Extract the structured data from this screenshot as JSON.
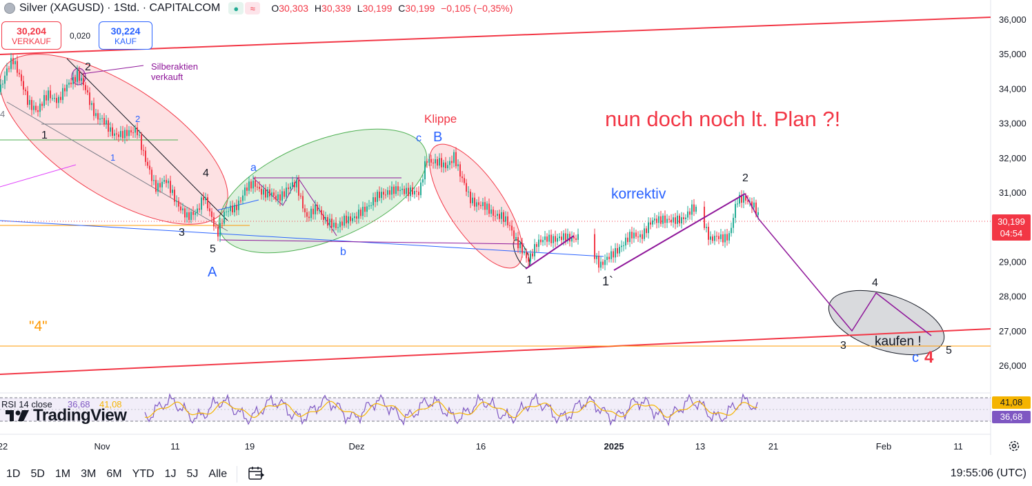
{
  "header": {
    "title": "Silver (XAGUSD) · 1Std. · CAPITALCOM",
    "open_label": "O",
    "open": "30,303",
    "high_label": "H",
    "high": "30,339",
    "low_label": "L",
    "low": "30,199",
    "close_label": "C",
    "close": "30,199",
    "change": "−0,105 (−0,35%)",
    "pill_green": "●",
    "pill_red": "≈"
  },
  "trade": {
    "sell_price": "30,204",
    "sell_label": "VERKAUF",
    "spread": "0,020",
    "buy_price": "30,224",
    "buy_label": "KAUF"
  },
  "colors": {
    "up": "#22ab94",
    "down": "#f23645",
    "channel": "#f23645",
    "orange": "#ff9800",
    "blue": "#2962ff",
    "purple": "#8e1599",
    "green_fill": "#4caf50",
    "rsi": "#7e57c2",
    "rsi_ma": "#f5b400"
  },
  "chart_data": {
    "type": "candlestick",
    "symbol": "Silver (XAGUSD)",
    "interval": "1Std.",
    "y_ticks": [
      "36,000",
      "35,000",
      "34,000",
      "33,000",
      "32,000",
      "31,000",
      "30,000",
      "29,000",
      "28,000",
      "27,000",
      "26,000"
    ],
    "y_values": [
      36,
      35,
      34,
      33,
      32,
      31,
      30,
      29,
      28,
      27,
      26
    ],
    "ylim": [
      25.2,
      36.4
    ],
    "x_ticks": [
      "22",
      "Nov",
      "11",
      "19",
      "Dez",
      "16",
      "2025",
      "13",
      "21",
      "Feb",
      "11"
    ],
    "last_price": "30,199",
    "countdown": "04:54",
    "close_path": [
      [
        0,
        33.9
      ],
      [
        10,
        34.6
      ],
      [
        18,
        34.9
      ],
      [
        28,
        34.3
      ],
      [
        40,
        33.7
      ],
      [
        55,
        33.3
      ],
      [
        70,
        33.9
      ],
      [
        85,
        33.6
      ],
      [
        100,
        34.2
      ],
      [
        112,
        34.4
      ],
      [
        125,
        33.9
      ],
      [
        140,
        33.2
      ],
      [
        160,
        32.8
      ],
      [
        180,
        32.6
      ],
      [
        198,
        32.9
      ],
      [
        210,
        31.9
      ],
      [
        225,
        31.2
      ],
      [
        240,
        31.3
      ],
      [
        258,
        30.7
      ],
      [
        272,
        30.2
      ],
      [
        285,
        30.5
      ],
      [
        295,
        30.9
      ],
      [
        305,
        30.3
      ],
      [
        315,
        29.85
      ],
      [
        325,
        30.4
      ],
      [
        340,
        30.5
      ],
      [
        355,
        31.1
      ],
      [
        370,
        31.2
      ],
      [
        385,
        31.0
      ],
      [
        400,
        30.8
      ],
      [
        415,
        31.1
      ],
      [
        430,
        31.2
      ],
      [
        445,
        30.3
      ],
      [
        460,
        30.5
      ],
      [
        475,
        30.2
      ],
      [
        488,
        29.9
      ],
      [
        500,
        30.3
      ],
      [
        515,
        30.2
      ],
      [
        530,
        30.6
      ],
      [
        545,
        30.8
      ],
      [
        565,
        31.1
      ],
      [
        580,
        31.0
      ],
      [
        595,
        31.1
      ],
      [
        608,
        30.9
      ],
      [
        618,
        32.0
      ],
      [
        630,
        31.9
      ],
      [
        645,
        31.7
      ],
      [
        658,
        32.1
      ],
      [
        668,
        31.4
      ],
      [
        680,
        30.9
      ],
      [
        695,
        30.6
      ],
      [
        710,
        30.5
      ],
      [
        725,
        30.3
      ],
      [
        740,
        30.0
      ],
      [
        752,
        29.5
      ],
      [
        765,
        28.95
      ],
      [
        778,
        29.6
      ],
      [
        795,
        29.6
      ],
      [
        810,
        29.75
      ],
      [
        825,
        29.6
      ],
      [
        840,
        29.8
      ],
      [
        855,
        29.4
      ],
      [
        870,
        28.95
      ],
      [
        885,
        29.1
      ],
      [
        900,
        29.5
      ],
      [
        915,
        29.7
      ],
      [
        930,
        29.8
      ],
      [
        945,
        30.1
      ],
      [
        960,
        30.3
      ],
      [
        975,
        30.1
      ],
      [
        990,
        30.3
      ],
      [
        1005,
        30.5
      ],
      [
        1018,
        30.3
      ],
      [
        1030,
        29.6
      ],
      [
        1045,
        29.7
      ],
      [
        1058,
        29.8
      ],
      [
        1068,
        30.7
      ],
      [
        1080,
        30.9
      ],
      [
        1092,
        30.6
      ],
      [
        1100,
        30.2
      ]
    ],
    "rsi": {
      "label": "RSI 14 close",
      "value": "36,68",
      "ma": "41,08",
      "upper": 70,
      "lower": 30
    },
    "annotations": {
      "plan_text": "nun doch noch lt. Plan ?!",
      "korrektiv": "korrektiv",
      "klippe": "Klippe",
      "silber_line1": "Silberaktien",
      "silber_line2": "verkauft",
      "kaufen": "kaufen !",
      "four_orange": "\"4\"",
      "A": "A",
      "B": "B",
      "c_lower": "c",
      "a_lower": "a",
      "b_lower": "b",
      "one": "1",
      "two": "2",
      "three": "3",
      "four": "4",
      "five": "5",
      "one_tick": "1`",
      "c_blue": "c",
      "four_red": "4"
    }
  },
  "timeframes": [
    "1D",
    "5D",
    "1M",
    "3M",
    "6M",
    "YTD",
    "1J",
    "5J",
    "Alle"
  ],
  "clock": "19:55:06 (UTC)",
  "logo_text": "TradingView"
}
